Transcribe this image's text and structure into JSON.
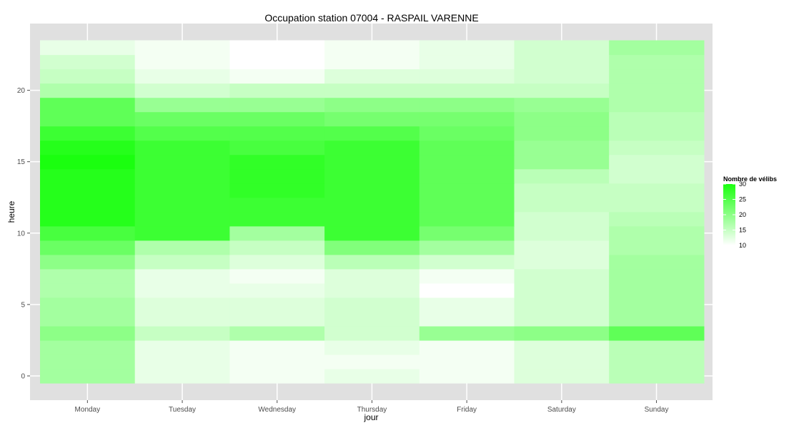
{
  "chart_data": {
    "type": "heatmap",
    "title": "Occupation station 07004 - RASPAIL VARENNE",
    "xlabel": "jour",
    "ylabel": "heure",
    "x_categories": [
      "Monday",
      "Tuesday",
      "Wednesday",
      "Thursday",
      "Friday",
      "Saturday",
      "Sunday"
    ],
    "y_hours": [
      0,
      1,
      2,
      3,
      4,
      5,
      6,
      7,
      8,
      9,
      10,
      11,
      12,
      13,
      14,
      15,
      16,
      17,
      18,
      19,
      20,
      21,
      22,
      23
    ],
    "y_ticks": [
      0,
      5,
      10,
      15,
      20
    ],
    "ylim": [
      -0.5,
      23.5
    ],
    "values": [
      [
        18,
        12,
        11,
        12,
        11,
        13,
        16
      ],
      [
        18,
        12,
        11,
        11,
        11,
        13,
        16
      ],
      [
        18,
        12,
        11,
        12,
        11,
        13,
        16
      ],
      [
        20,
        15,
        17,
        14,
        19,
        20,
        24
      ],
      [
        18,
        13,
        13,
        14,
        12,
        14,
        18
      ],
      [
        18,
        13,
        13,
        14,
        12,
        14,
        18
      ],
      [
        17,
        12,
        12,
        13,
        10,
        14,
        18
      ],
      [
        17,
        12,
        11,
        13,
        11,
        14,
        18
      ],
      [
        20,
        15,
        13,
        16,
        14,
        13,
        18
      ],
      [
        23,
        17,
        15,
        21,
        18,
        13,
        17
      ],
      [
        26,
        27,
        18,
        27,
        22,
        14,
        17
      ],
      [
        29,
        27,
        27,
        27,
        24,
        14,
        16
      ],
      [
        29,
        27,
        27,
        27,
        24,
        15,
        15
      ],
      [
        29,
        27,
        28,
        27,
        24,
        15,
        15
      ],
      [
        29,
        27,
        28,
        27,
        24,
        16,
        14
      ],
      [
        30,
        27,
        28,
        27,
        24,
        19,
        14
      ],
      [
        29,
        27,
        26,
        27,
        24,
        19,
        15
      ],
      [
        27,
        25,
        25,
        25,
        23,
        20,
        16
      ],
      [
        24,
        23,
        23,
        22,
        22,
        20,
        16
      ],
      [
        24,
        19,
        19,
        20,
        20,
        19,
        17
      ],
      [
        17,
        14,
        15,
        15,
        15,
        15,
        17
      ],
      [
        15,
        12,
        11,
        13,
        13,
        14,
        17
      ],
      [
        14,
        11,
        10,
        11,
        12,
        14,
        17
      ],
      [
        12,
        11,
        10,
        11,
        12,
        14,
        18
      ]
    ],
    "color_scale": {
      "low": "#ffffff",
      "high": "#1aff0f",
      "min": 10,
      "max": 30
    },
    "legend": {
      "title": "Nombre de vélibs",
      "ticks": [
        10,
        15,
        20,
        25,
        30
      ],
      "position": "right"
    },
    "grid": true,
    "panel_background": "#e0e0e0"
  }
}
